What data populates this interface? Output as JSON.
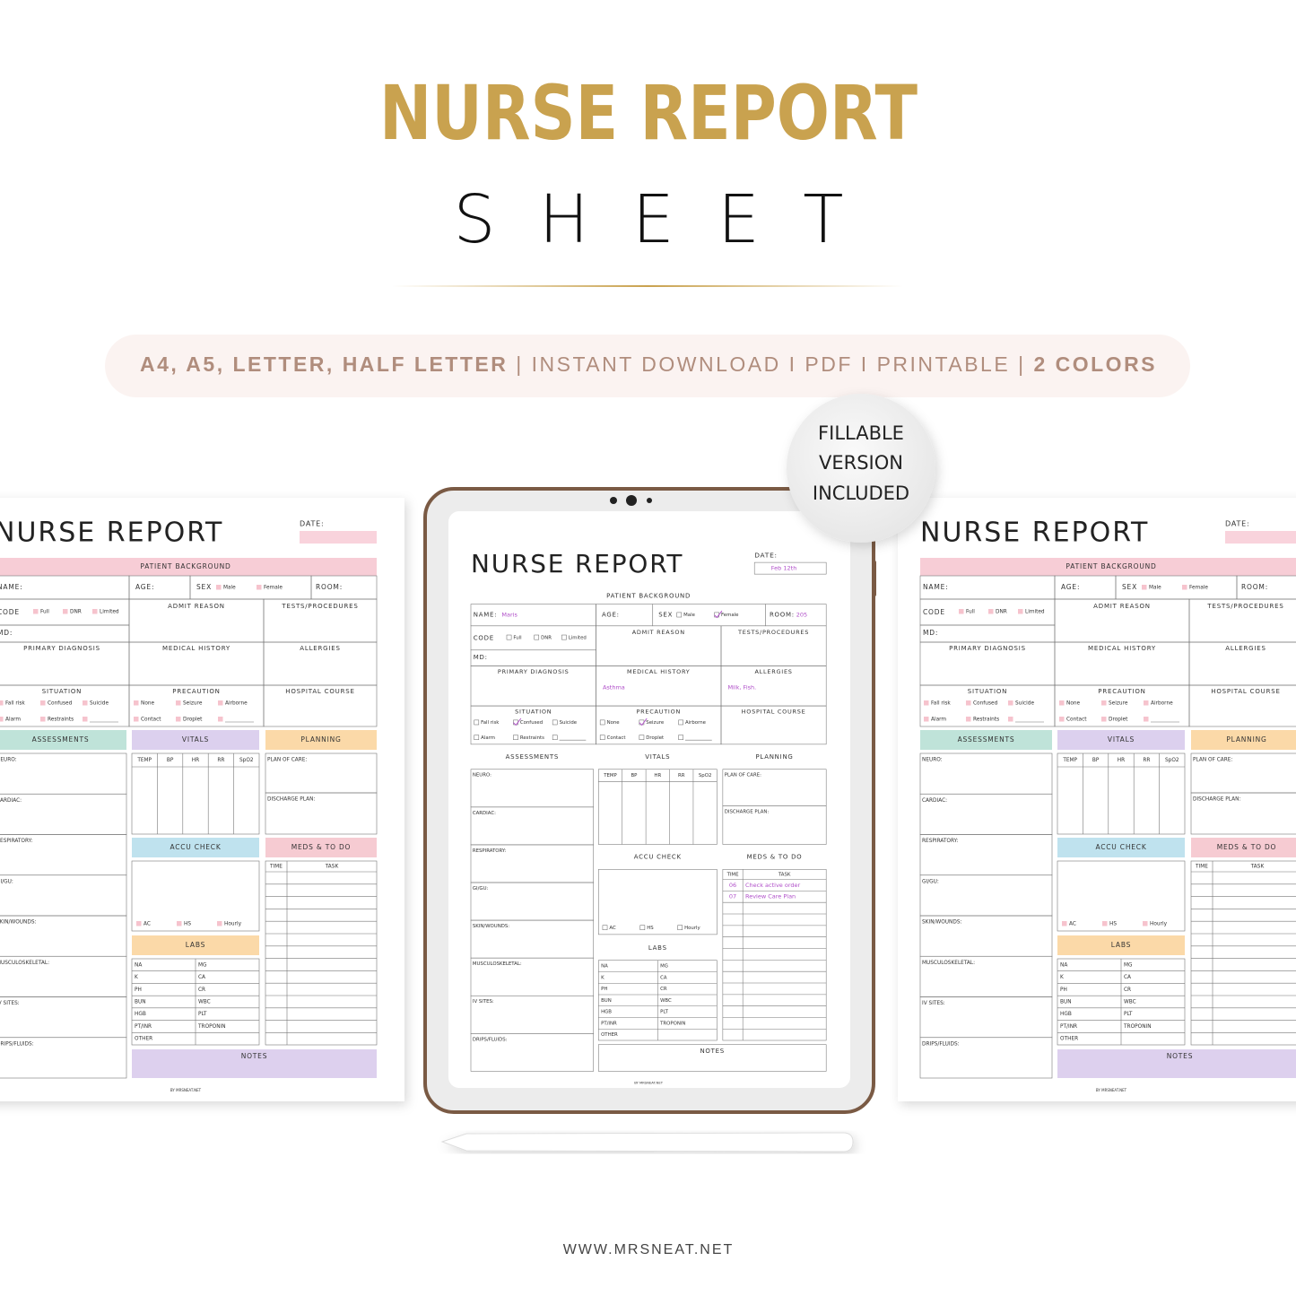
{
  "header": {
    "title": "NURSE REPORT",
    "subtitle": "SHEET",
    "banner": {
      "sizes": "A4, A5, LETTER, HALF LETTER",
      "separator": "|",
      "details": "INSTANT DOWNLOAD I PDF I PRINTABLE",
      "colors": "2 COLORS"
    }
  },
  "badge": {
    "lines": [
      "FILLABLE",
      "VERSION",
      "INCLUDED"
    ]
  },
  "sheet": {
    "title": "NURSE REPORT",
    "date_label": "DATE:",
    "patient_background": "PATIENT BACKGROUND",
    "name_label": "NAME:",
    "age_label": "AGE:",
    "sex_label": "SEX",
    "sex_options": [
      "Male",
      "Female"
    ],
    "room_label": "ROOM:",
    "code_label": "CODE",
    "code_options": [
      "Full",
      "DNR",
      "Limited"
    ],
    "md_label": "MD:",
    "admit_reason": "ADMIT REASON",
    "tests_procedures": "TESTS/PROCEDURES",
    "primary_diagnosis": "PRIMARY DIAGNOSIS",
    "medical_history": "MEDICAL HISTORY",
    "allergies": "ALLERGIES",
    "situation": {
      "title": "SITUATION",
      "options": [
        "Fall risk",
        "Confused",
        "Suicide",
        "Alarm",
        "Restraints"
      ]
    },
    "precaution": {
      "title": "PRECAUTION",
      "options": [
        "None",
        "Seizure",
        "Airborne",
        "Contact",
        "Droplet"
      ]
    },
    "hospital_course": "HOSPITAL COURSE",
    "assessments": {
      "title": "ASSESSMENTS",
      "items": [
        "NEURO:",
        "CARDIAC:",
        "RESPIRATORY:",
        "GI/GU:",
        "SKIN/WOUNDS:",
        "MUSCULOSKELETAL:",
        "IV SITES:",
        "DRIPS/FLUIDS:"
      ]
    },
    "vitals": {
      "title": "VITALS",
      "columns": [
        "TEMP",
        "BP",
        "HR",
        "RR",
        "SpO2"
      ]
    },
    "planning": {
      "title": "PLANNING",
      "items": [
        "PLAN OF CARE:",
        "DISCHARGE PLAN:"
      ]
    },
    "accu_check": {
      "title": "ACCU CHECK",
      "options": [
        "AC",
        "HS",
        "Hourly"
      ]
    },
    "meds": {
      "title": "MEDS & TO DO",
      "columns": [
        "TIME",
        "TASK"
      ]
    },
    "labs": {
      "title": "LABS",
      "rows": [
        [
          "NA",
          "MG"
        ],
        [
          "K",
          "CA"
        ],
        [
          "PH",
          "CR"
        ],
        [
          "BUN",
          "WBC"
        ],
        [
          "HGB",
          "PLT"
        ],
        [
          "PT/INR",
          "TROPONIN"
        ],
        [
          "OTHER"
        ]
      ]
    },
    "notes": "NOTES",
    "credit": "BY MRSNEAT.NET"
  },
  "filled": {
    "date": "Feb 12th",
    "name": "Maris",
    "room": "205",
    "medical_history": "Asthma",
    "allergies": "Milk, Fish.",
    "meds": [
      {
        "time": "06",
        "task": "Check active order"
      },
      {
        "time": "07",
        "task": "Review Care Plan"
      }
    ]
  },
  "footer": {
    "website": "WWW.MRSNEAT.NET"
  }
}
